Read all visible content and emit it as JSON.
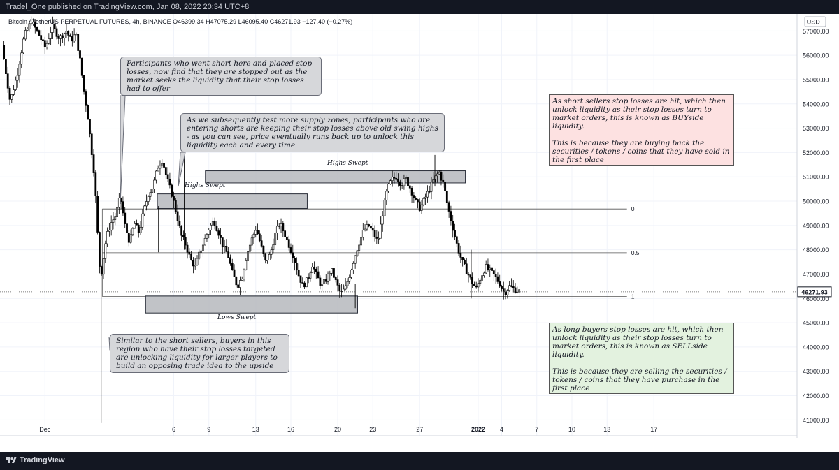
{
  "header": {
    "publish_text": "Tradel_One published on TradingView.com, Jan 08, 2022 20:34 UTC+8"
  },
  "symbol_info": {
    "text": "Bitcoin / TetherUS PERPETUAL FUTURES, 4h, BINANCE  O46399.34  H47075.29  L46095.40  C46271.93  −127.40 (−0.27%)"
  },
  "footer": {
    "brand": "TradingView"
  },
  "annotations": {
    "note1": "Participants who went short here and placed stop losses, now find that they are stopped out as the market seeks the liquidity that their stop losses had to offer",
    "note2": "As we subsequently test more supply zones, participants who are entering shorts are keeping their stop losses above old swing highs - as you can see, price eventually runs back up to unlock this liquidity each and every time",
    "note3": "Similar to the short sellers, buyers in this region who have their stop losses targeted are unlocking liquidity for larger players to build an opposing trade idea to the upside",
    "buyside_p1": "As short sellers stop losses are hit, which then unlock liquidity as their stop losses turn to market orders, this is known as BUYside liquidity.",
    "buyside_p2": "This is because they are buying back the securities / tokens / coins that they have sold in the first place",
    "sellside_p1": "As long buyers stop losses are hit, which then unlock liquidity as their stop losses turn to market orders, this is known as SELLside liquidity.",
    "sellside_p2": "This is because they are selling the securities / tokens / coins that they have purchase in the first place",
    "zone_highs_1": "Highs Swept",
    "zone_highs_2": "Highs Swept",
    "zone_lows": "Lows Swept"
  },
  "chart_data": {
    "type": "candlestick",
    "symbol": "Bitcoin / TetherUS PERPETUAL FUTURES",
    "interval": "4h",
    "exchange": "BINANCE",
    "ohlc_last": {
      "open": 46399.34,
      "high": 47075.29,
      "low": 46095.4,
      "close": 46271.93,
      "change": -127.4,
      "change_pct": -0.27
    },
    "last_price_label": "46271.93",
    "currency_label": "USDT",
    "y_ticks": [
      41000,
      42000,
      43000,
      44000,
      45000,
      46000,
      47000,
      48000,
      49000,
      50000,
      51000,
      52000,
      53000,
      54000,
      55000,
      56000,
      57000
    ],
    "y_tick_labels": [
      "41000.00",
      "42000.00",
      "43000.00",
      "44000.00",
      "45000.00",
      "46000.00",
      "47000.00",
      "48000.00",
      "49000.00",
      "50000.00",
      "51000.00",
      "52000.00",
      "53000.00",
      "54000.00",
      "55000.00",
      "56000.00",
      "57000.00"
    ],
    "ylim": [
      40350,
      57700
    ],
    "x_ticks": [
      "Dec",
      "6",
      "9",
      "13",
      "16",
      "20",
      "23",
      "27",
      "2022",
      "4",
      "7",
      "10",
      "13",
      "17"
    ],
    "x_tick_days": [
      -5,
      6,
      9,
      13,
      16,
      20,
      23,
      27,
      32,
      34,
      37,
      40,
      43,
      47
    ],
    "fib_levels": [
      {
        "label": "0",
        "price": 49680
      },
      {
        "label": "0.5",
        "price": 47880
      },
      {
        "label": "1",
        "price": 46080
      }
    ],
    "zones": [
      {
        "label": "Highs Swept",
        "start_day": 4.6,
        "end_day": 17.4,
        "low": 49700,
        "high": 50300
      },
      {
        "label": "Highs Swept",
        "start_day": 8.7,
        "end_day": 30.9,
        "low": 50750,
        "high": 51250
      },
      {
        "label": "Lows Swept",
        "start_day": 3.6,
        "end_day": 21.7,
        "low": 45400,
        "high": 46100
      }
    ],
    "path": [
      [
        -8.5,
        56400
      ],
      [
        -7.8,
        54100
      ],
      [
        -7.2,
        55200
      ],
      [
        -6.6,
        56800
      ],
      [
        -6.0,
        57400
      ],
      [
        -5.4,
        56900
      ],
      [
        -4.8,
        56300
      ],
      [
        -4.2,
        57200
      ],
      [
        -3.6,
        56700
      ],
      [
        -3.0,
        57000
      ],
      [
        -2.6,
        56600
      ],
      [
        -2.2,
        56900
      ],
      [
        -1.8,
        55700
      ],
      [
        -1.5,
        54500
      ],
      [
        -1.2,
        53600
      ],
      [
        -0.9,
        52300
      ],
      [
        -0.6,
        51000
      ],
      [
        -0.4,
        49300
      ],
      [
        -0.2,
        47400
      ],
      [
        0.0,
        47100
      ],
      [
        0.4,
        48500
      ],
      [
        0.8,
        49100
      ],
      [
        1.2,
        49400
      ],
      [
        1.6,
        50200
      ],
      [
        2.0,
        49000
      ],
      [
        2.4,
        48300
      ],
      [
        2.8,
        49100
      ],
      [
        3.2,
        48700
      ],
      [
        3.6,
        49600
      ],
      [
        4.0,
        50300
      ],
      [
        4.4,
        50600
      ],
      [
        4.8,
        51400
      ],
      [
        5.2,
        51700
      ],
      [
        5.6,
        50900
      ],
      [
        6.0,
        50300
      ],
      [
        6.4,
        49500
      ],
      [
        6.8,
        48600
      ],
      [
        7.2,
        48200
      ],
      [
        7.6,
        47600
      ],
      [
        8.0,
        47300
      ],
      [
        8.4,
        47900
      ],
      [
        8.8,
        48400
      ],
      [
        9.2,
        48900
      ],
      [
        9.6,
        49200
      ],
      [
        10.0,
        48700
      ],
      [
        10.4,
        48100
      ],
      [
        10.8,
        47800
      ],
      [
        11.2,
        47000
      ],
      [
        11.6,
        46500
      ],
      [
        12.0,
        46900
      ],
      [
        12.4,
        47800
      ],
      [
        12.8,
        48400
      ],
      [
        13.2,
        48900
      ],
      [
        13.6,
        48200
      ],
      [
        14.0,
        47500
      ],
      [
        14.4,
        47800
      ],
      [
        14.8,
        48600
      ],
      [
        15.2,
        49100
      ],
      [
        15.6,
        48700
      ],
      [
        16.0,
        48200
      ],
      [
        16.4,
        47700
      ],
      [
        16.8,
        47000
      ],
      [
        17.2,
        46500
      ],
      [
        17.6,
        46800
      ],
      [
        18.0,
        47400
      ],
      [
        18.4,
        46900
      ],
      [
        18.8,
        46500
      ],
      [
        19.2,
        46800
      ],
      [
        19.6,
        47200
      ],
      [
        20.0,
        46700
      ],
      [
        20.4,
        46200
      ],
      [
        20.8,
        46400
      ],
      [
        21.2,
        47000
      ],
      [
        21.6,
        47700
      ],
      [
        22.0,
        48300
      ],
      [
        22.4,
        48800
      ],
      [
        22.8,
        49000
      ],
      [
        23.2,
        48700
      ],
      [
        23.6,
        48300
      ],
      [
        24.0,
        49500
      ],
      [
        24.4,
        50500
      ],
      [
        24.8,
        50900
      ],
      [
        25.2,
        51000
      ],
      [
        25.6,
        50700
      ],
      [
        26.0,
        50900
      ],
      [
        26.4,
        50500
      ],
      [
        26.8,
        50000
      ],
      [
        27.2,
        49700
      ],
      [
        27.6,
        50100
      ],
      [
        28.0,
        50500
      ],
      [
        28.4,
        50900
      ],
      [
        28.8,
        51200
      ],
      [
        29.2,
        50700
      ],
      [
        29.6,
        49700
      ],
      [
        30.0,
        48900
      ],
      [
        30.4,
        48100
      ],
      [
        30.8,
        47500
      ],
      [
        31.2,
        47100
      ],
      [
        31.6,
        46700
      ],
      [
        32.0,
        46400
      ],
      [
        32.4,
        46900
      ],
      [
        32.8,
        47300
      ],
      [
        33.2,
        47100
      ],
      [
        33.6,
        46900
      ],
      [
        34.0,
        46600
      ],
      [
        34.4,
        46200
      ],
      [
        34.8,
        46500
      ],
      [
        35.2,
        46400
      ],
      [
        35.6,
        46300
      ]
    ],
    "wicks": [
      [
        4.7,
        49800,
        47900
      ],
      [
        6.9,
        51900,
        48000
      ],
      [
        21.5,
        46600,
        45600
      ],
      [
        28.3,
        51900,
        50600
      ],
      [
        31.4,
        48000,
        46000
      ]
    ]
  }
}
